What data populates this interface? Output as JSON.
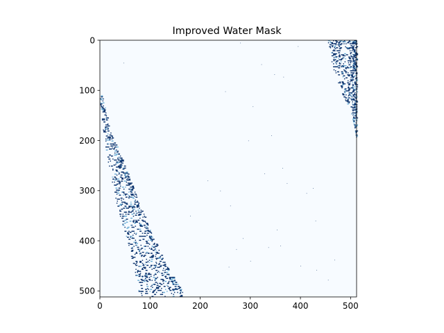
{
  "chart_data": {
    "type": "heatmap",
    "title": "Improved Water Mask",
    "xlabel": "",
    "ylabel": "",
    "xlim": [
      0,
      512
    ],
    "ylim": [
      512,
      0
    ],
    "xticks": [
      0,
      100,
      200,
      300,
      400,
      500
    ],
    "yticks": [
      0,
      100,
      200,
      300,
      400,
      500
    ],
    "xtick_labels": [
      "0",
      "100",
      "200",
      "300",
      "400",
      "500"
    ],
    "ytick_labels": [
      "0",
      "100",
      "200",
      "300",
      "400",
      "500"
    ],
    "colormap": "Blues",
    "colors": {
      "background": "#f7fbff",
      "water": "#08306b",
      "mid": "#6baed6"
    },
    "grid": false,
    "legend": "none",
    "regions": [
      {
        "name": "left-water-band",
        "left_edge": [
          [
            0,
            110
          ],
          [
            8,
            190
          ],
          [
            20,
            260
          ],
          [
            35,
            330
          ],
          [
            55,
            400
          ],
          [
            70,
            460
          ],
          [
            80,
            512
          ]
        ],
        "right_edge": [
          [
            5,
            110
          ],
          [
            20,
            180
          ],
          [
            45,
            240
          ],
          [
            65,
            290
          ],
          [
            85,
            340
          ],
          [
            105,
            390
          ],
          [
            125,
            430
          ],
          [
            145,
            470
          ],
          [
            170,
            512
          ]
        ],
        "density": 0.14
      },
      {
        "name": "top-right-water-band",
        "left_edge": [
          [
            455,
            0
          ],
          [
            462,
            40
          ],
          [
            472,
            80
          ],
          [
            485,
            110
          ],
          [
            500,
            140
          ],
          [
            508,
            170
          ],
          [
            512,
            195
          ]
        ],
        "right_edge": [
          [
            512,
            0
          ],
          [
            512,
            195
          ]
        ],
        "density": 0.22
      }
    ],
    "scatter_water_pixels": [
      [
        47,
        45
      ],
      [
        250,
        102
      ],
      [
        322,
        48
      ],
      [
        348,
        68
      ],
      [
        366,
        73
      ],
      [
        305,
        132
      ],
      [
        296,
        200
      ],
      [
        342,
        190
      ],
      [
        328,
        266
      ],
      [
        364,
        255
      ],
      [
        373,
        285
      ],
      [
        412,
        305
      ],
      [
        425,
        295
      ],
      [
        353,
        378
      ],
      [
        336,
        413
      ],
      [
        272,
        417
      ],
      [
        257,
        452
      ],
      [
        300,
        440
      ],
      [
        455,
        478
      ],
      [
        432,
        458
      ],
      [
        468,
        438
      ],
      [
        280,
        5
      ],
      [
        395,
        12
      ],
      [
        215,
        280
      ],
      [
        240,
        300
      ],
      [
        180,
        350
      ],
      [
        260,
        330
      ],
      [
        285,
        395
      ],
      [
        430,
        360
      ],
      [
        400,
        450
      ],
      [
        360,
        410
      ]
    ]
  }
}
